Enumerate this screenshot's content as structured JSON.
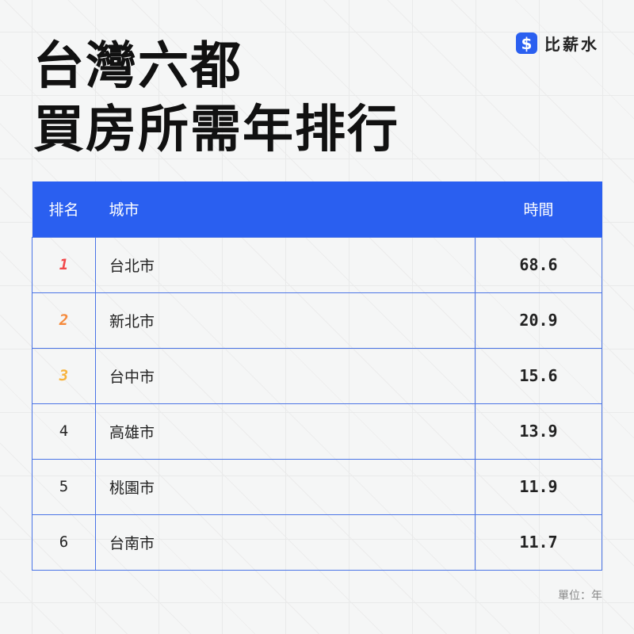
{
  "title": {
    "line1": "台灣六都",
    "line2": "買房所需年排行"
  },
  "brand": {
    "icon": "dollar-icon",
    "glyph": "$",
    "name": "比薪水"
  },
  "table": {
    "headers": [
      "排名",
      "城市",
      "時間"
    ],
    "rows": [
      {
        "rank": "1",
        "city": "台北市",
        "years": "68.6",
        "rank_color": "#f2494b"
      },
      {
        "rank": "2",
        "city": "新北市",
        "years": "20.9",
        "rank_color": "#f58a3c"
      },
      {
        "rank": "3",
        "city": "台中市",
        "years": "15.6",
        "rank_color": "#f7b33c"
      },
      {
        "rank": "4",
        "city": "高雄市",
        "years": "13.9",
        "rank_color": "#222222"
      },
      {
        "rank": "5",
        "city": "桃園市",
        "years": "11.9",
        "rank_color": "#222222"
      },
      {
        "rank": "6",
        "city": "台南市",
        "years": "11.7",
        "rank_color": "#222222"
      }
    ]
  },
  "unit": "單位：年",
  "colors": {
    "accent": "#2a5ff0"
  }
}
